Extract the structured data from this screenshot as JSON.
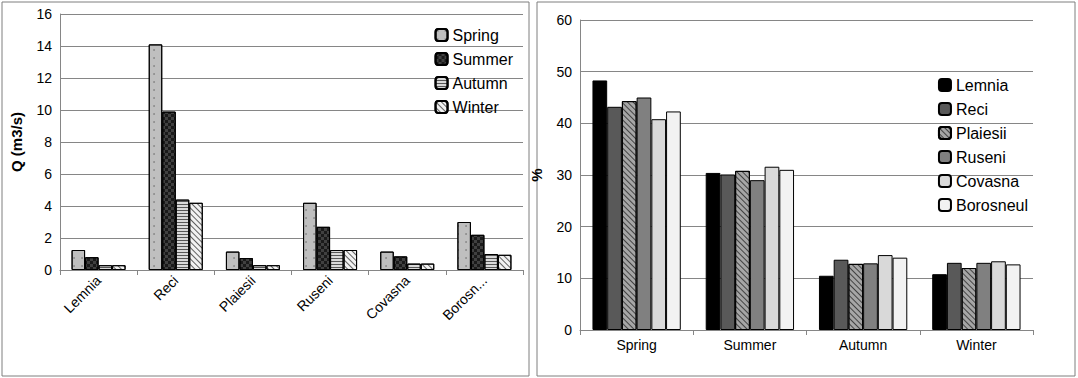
{
  "chart_data": [
    {
      "type": "bar",
      "y_label": "Q (m3/s)",
      "categories": [
        "Lemnia",
        "Reci",
        "Plaiesii",
        "Ruseni",
        "Covasna",
        "Borosn..."
      ],
      "series": [
        {
          "name": "Spring",
          "color": "#bfbfbf",
          "values": [
            1.25,
            14.1,
            1.15,
            4.2,
            1.15,
            3.0
          ]
        },
        {
          "name": "Summer",
          "color": "#404040",
          "values": [
            0.8,
            9.9,
            0.75,
            2.7,
            0.85,
            2.2
          ]
        },
        {
          "name": "Autumn",
          "color": "#d9d9d9",
          "values": [
            0.3,
            4.4,
            0.3,
            1.25,
            0.4,
            1.0
          ]
        },
        {
          "name": "Winter",
          "color": "#f2f2f2",
          "values": [
            0.3,
            4.2,
            0.3,
            1.25,
            0.4,
            0.95
          ]
        }
      ],
      "ylim": [
        0,
        16
      ],
      "yticks": [
        0,
        2,
        4,
        6,
        8,
        10,
        12,
        14,
        16
      ],
      "grid": true,
      "legend": "upper right"
    },
    {
      "type": "bar",
      "y_label": "%",
      "categories": [
        "Spring",
        "Summer",
        "Autumn",
        "Winter"
      ],
      "series": [
        {
          "name": "Lemnia",
          "color": "#000000",
          "values": [
            48.3,
            30.4,
            10.5,
            10.8
          ]
        },
        {
          "name": "Reci",
          "color": "#595959",
          "values": [
            43.2,
            30.1,
            13.6,
            13.0
          ]
        },
        {
          "name": "Plaiesii",
          "color": "#a6a6a6",
          "values": [
            44.3,
            30.8,
            12.8,
            12.0
          ]
        },
        {
          "name": "Ruseni",
          "color": "#808080",
          "values": [
            45.0,
            29.0,
            12.9,
            13.0
          ]
        },
        {
          "name": "Covasna",
          "color": "#d9d9d9",
          "values": [
            40.8,
            31.6,
            14.5,
            13.3
          ]
        },
        {
          "name": "Borosneul",
          "color": "#f2f2f2",
          "values": [
            42.3,
            31.0,
            14.0,
            12.7
          ]
        }
      ],
      "ylim": [
        0,
        60
      ],
      "yticks": [
        0,
        10,
        20,
        30,
        40,
        50,
        60
      ],
      "grid": true,
      "legend": "upper right"
    }
  ]
}
